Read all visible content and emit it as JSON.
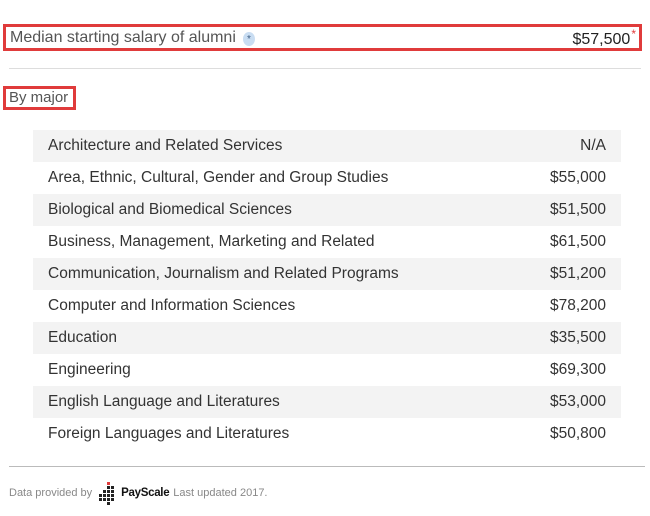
{
  "summary": {
    "label": "Median starting salary of alumni",
    "info_icon": "info-icon",
    "value": "$57,500",
    "footnote_mark": "*"
  },
  "section": {
    "title": "By major"
  },
  "majors": [
    {
      "name": "Architecture and Related Services",
      "salary": "N/A"
    },
    {
      "name": "Area, Ethnic, Cultural, Gender and Group Studies",
      "salary": "$55,000"
    },
    {
      "name": "Biological and Biomedical Sciences",
      "salary": "$51,500"
    },
    {
      "name": "Business, Management, Marketing and Related",
      "salary": "$61,500"
    },
    {
      "name": "Communication, Journalism and Related Programs",
      "salary": "$51,200"
    },
    {
      "name": "Computer and Information Sciences",
      "salary": "$78,200"
    },
    {
      "name": "Education",
      "salary": "$35,500"
    },
    {
      "name": "Engineering",
      "salary": "$69,300"
    },
    {
      "name": "English Language and Literatures",
      "salary": "$53,000"
    },
    {
      "name": "Foreign Languages and Literatures",
      "salary": "$50,800"
    }
  ],
  "footer": {
    "prefix": "Data provided by",
    "brand": "PayScale",
    "updated": "Last updated 2017.",
    "logo_icon": "payscale-logo-icon",
    "colors": {
      "logo_accent": "#e03b3b",
      "logo_dots": "#222222"
    }
  },
  "colors": {
    "highlight_border": "#e03b3b",
    "row_shade": "#f3f3f3"
  }
}
